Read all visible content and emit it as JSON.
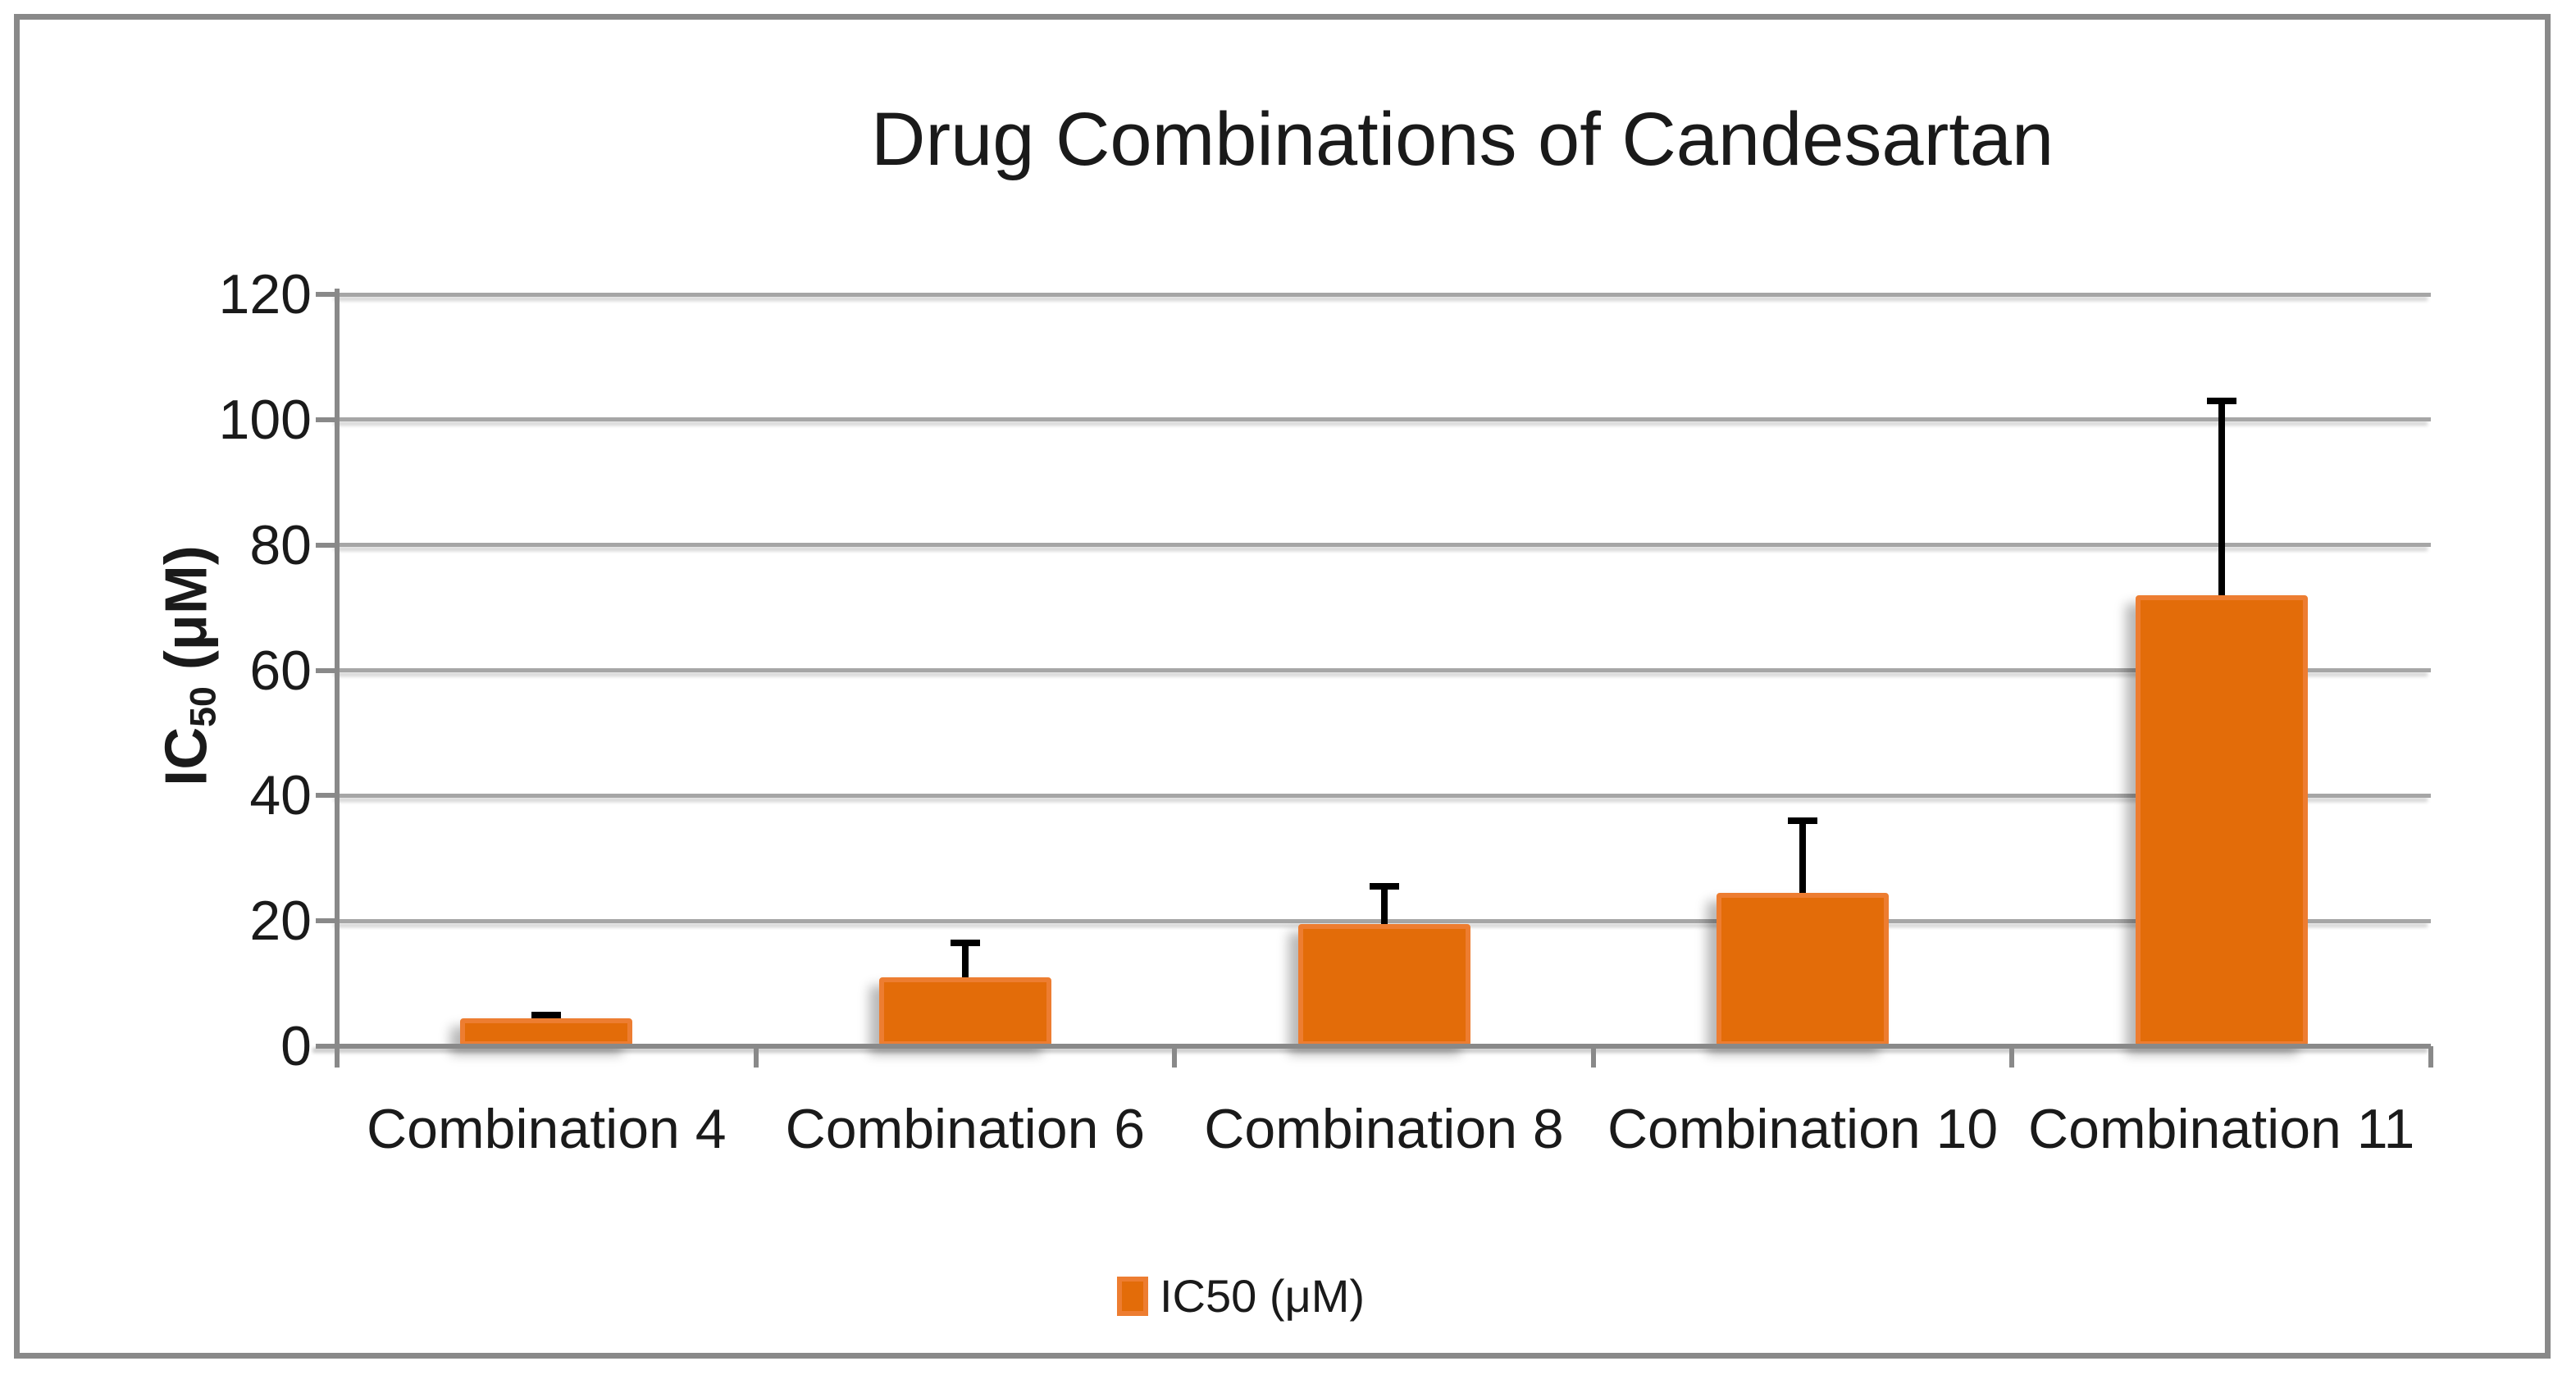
{
  "chart_data": {
    "type": "bar",
    "title": "Drug Combinations of Candesartan",
    "categories": [
      "Combination 4",
      "Combination 6",
      "Combination 8",
      "Combination 10",
      "Combination 11"
    ],
    "series": [
      {
        "name": "IC50 (μM)",
        "values": [
          4.5,
          11,
          19.5,
          24.5,
          72
        ],
        "error_plus": [
          0.5,
          5.5,
          6,
          11.5,
          31
        ]
      }
    ],
    "xlabel": "",
    "ylabel": "IC50 (μM)",
    "ylim": [
      0,
      120
    ],
    "ytick_step": 20,
    "yticks": [
      0,
      20,
      40,
      60,
      80,
      100,
      120
    ],
    "grid": "horizontal",
    "legend_position": "bottom-center",
    "bar_color": "#e36c09",
    "bar_border_color": "#ed7d31",
    "error_bar_color": "#000000",
    "gridline_color": "#a6a6a6",
    "axis_color": "#898989",
    "text_color": "#1a1a1a"
  },
  "y_axis_title": {
    "main": "IC",
    "sub": "50",
    "unit": " (μM)"
  }
}
